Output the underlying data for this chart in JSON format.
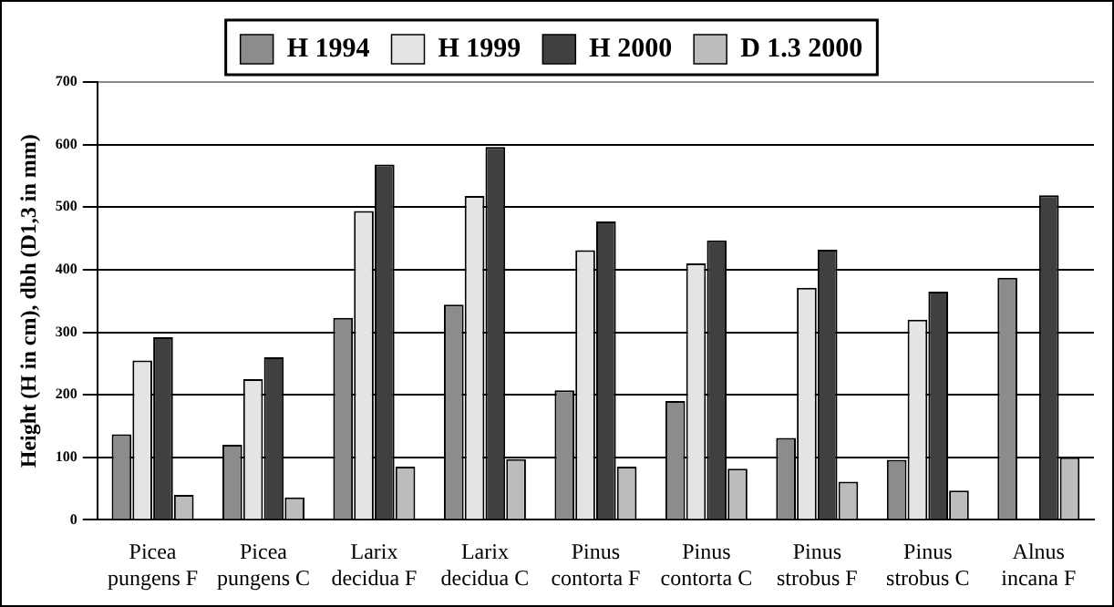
{
  "chart_data": {
    "type": "bar",
    "ylabel": "Height (H in cm), dbh (D1,3 in mm)",
    "categories": [
      "Picea pungens F",
      "Picea pungens C",
      "Larix decidua F",
      "Larix decidua C",
      "Pinus contorta F",
      "Pinus contorta C",
      "Pinus strobus F",
      "Pinus strobus C",
      "Alnus incana F"
    ],
    "series": [
      {
        "name": "H 1994",
        "color": "#8c8c8c",
        "values": [
          137,
          120,
          323,
          344,
          207,
          190,
          131,
          96,
          387
        ]
      },
      {
        "name": "H 1999",
        "color": "#e4e4e4",
        "values": [
          255,
          225,
          494,
          518,
          431,
          410,
          371,
          320,
          null
        ]
      },
      {
        "name": "H 2000",
        "color": "#404040",
        "values": [
          292,
          260,
          568,
          596,
          477,
          447,
          432,
          365,
          519
        ]
      },
      {
        "name": "D 1.3 2000",
        "color": "#bcbcbc",
        "values": [
          40,
          36,
          85,
          97,
          85,
          82,
          61,
          47,
          100
        ]
      }
    ],
    "ylim": [
      0,
      700
    ],
    "yticks": [
      0,
      100,
      200,
      300,
      400,
      500,
      600,
      700
    ],
    "grid": "y",
    "legend": "top"
  }
}
